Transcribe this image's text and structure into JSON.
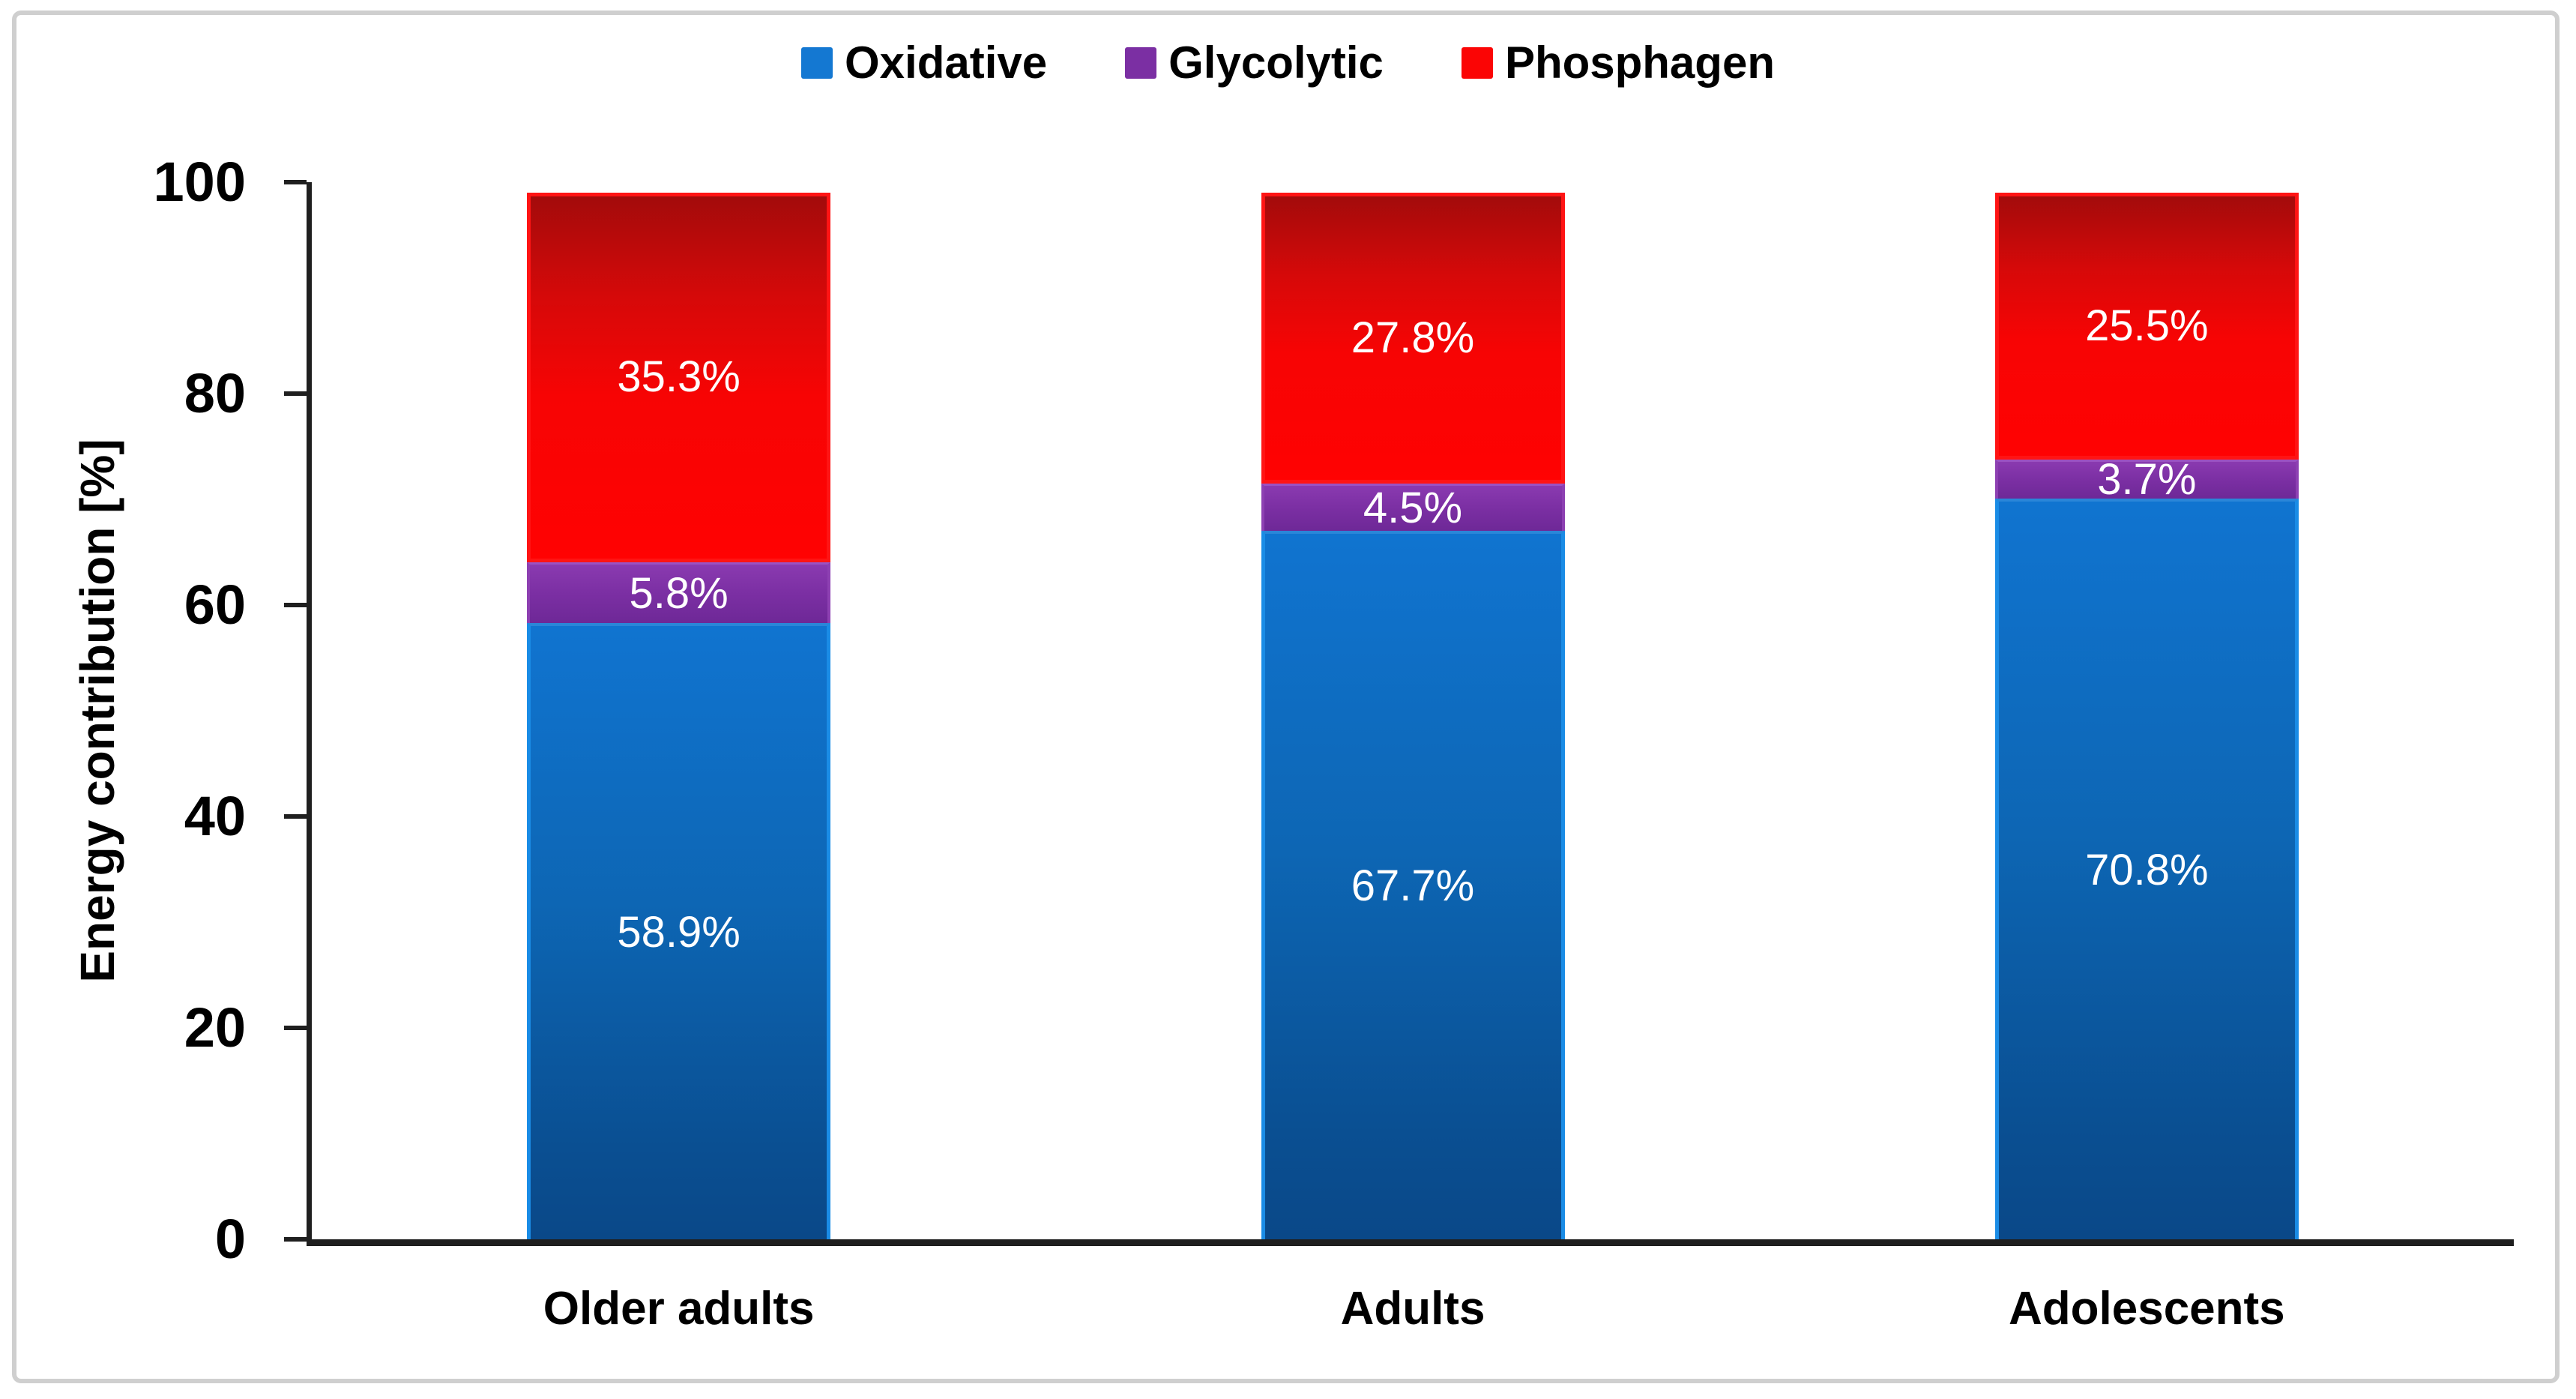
{
  "figure": {
    "background": "#ffffff",
    "border_color": "#cfcfcf"
  },
  "legend": {
    "position": "top-center",
    "items": [
      {
        "label": "Oxidative",
        "color": "#1478d2"
      },
      {
        "label": "Glycolytic",
        "color": "#7b2fa3"
      },
      {
        "label": "Phosphagen",
        "color": "#fb0505"
      }
    ]
  },
  "y_axis": {
    "title": "Energy contribution [%]",
    "ticks": [
      "0",
      "20",
      "40",
      "60",
      "80",
      "100"
    ],
    "min": 0,
    "max": 100
  },
  "chart_data": {
    "type": "bar",
    "stacked": true,
    "title": "",
    "categories": [
      "Older adults",
      "Adults",
      "Adolescents"
    ],
    "series": [
      {
        "name": "Oxidative",
        "values": [
          58.9,
          67.7,
          70.8
        ],
        "labels": [
          "58.9%",
          "67.7%",
          "70.8%"
        ],
        "color": "#1074d0",
        "gradient_top": "#1074d0",
        "gradient_bottom": "#0a4888",
        "edge": "#1a8ce6"
      },
      {
        "name": "Glycolytic",
        "values": [
          5.8,
          4.5,
          3.7
        ],
        "labels": [
          "5.8%",
          "4.5%",
          "3.7%"
        ],
        "color": "#7b2fa3",
        "gradient_top": "#8a3ab0",
        "gradient_bottom": "#6e2897",
        "edge": "#8d40b2"
      },
      {
        "name": "Phosphagen",
        "values": [
          35.3,
          27.8,
          25.5
        ],
        "labels": [
          "35.3%",
          "27.8%",
          "25.5%"
        ],
        "color": "#f70404",
        "gradient_top": "#a30b0b",
        "gradient_bottom": "#ff0202",
        "edge": "#ff1414"
      }
    ],
    "xlabel": "",
    "ylabel": "Energy contribution [%]",
    "ylim": [
      0,
      100
    ],
    "grid": false,
    "legend_position": "top-center",
    "value_label_color": "#ffffff"
  }
}
